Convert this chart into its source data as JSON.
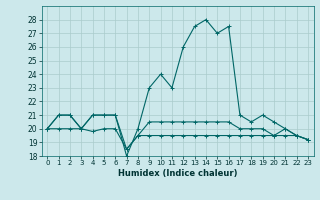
{
  "xlabel": "Humidex (Indice chaleur)",
  "background_color": "#cce8eb",
  "grid_color": "#aacccc",
  "line_color": "#006666",
  "xlim": [
    -0.5,
    23.5
  ],
  "ylim": [
    18,
    29
  ],
  "yticks": [
    18,
    19,
    20,
    21,
    22,
    23,
    24,
    25,
    26,
    27,
    28
  ],
  "xticks": [
    0,
    1,
    2,
    3,
    4,
    5,
    6,
    7,
    8,
    9,
    10,
    11,
    12,
    13,
    14,
    15,
    16,
    17,
    18,
    19,
    20,
    21,
    22,
    23
  ],
  "line1": [
    20,
    21,
    21,
    20,
    21,
    21,
    21,
    18,
    20,
    23,
    24,
    23,
    26,
    27.5,
    28,
    27,
    27.5,
    21,
    20.5,
    21,
    20.5,
    20,
    19.5,
    19.2
  ],
  "line2": [
    20,
    21,
    21,
    20,
    21,
    21,
    21,
    18.5,
    19.5,
    20.5,
    20.5,
    20.5,
    20.5,
    20.5,
    20.5,
    20.5,
    20.5,
    20,
    20,
    20,
    19.5,
    20,
    19.5,
    19.2
  ],
  "line3": [
    20,
    20,
    20,
    20,
    19.8,
    20,
    20,
    18.5,
    19.5,
    19.5,
    19.5,
    19.5,
    19.5,
    19.5,
    19.5,
    19.5,
    19.5,
    19.5,
    19.5,
    19.5,
    19.5,
    19.5,
    19.5,
    19.2
  ]
}
